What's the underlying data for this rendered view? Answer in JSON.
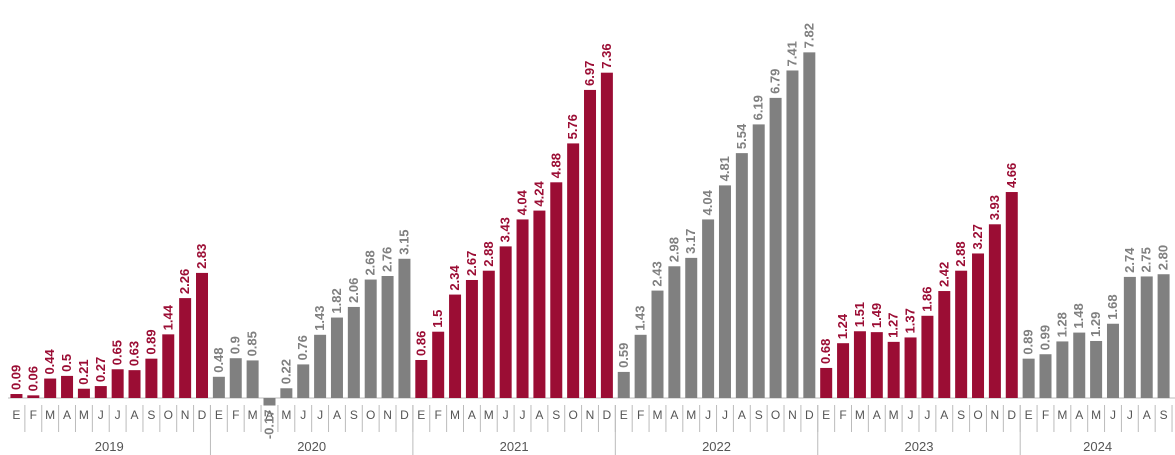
{
  "colors": {
    "highlight": "#9b0d34",
    "neutral": "#808080",
    "axis": "#bbbbbb",
    "text": "#555555"
  },
  "chart_data": {
    "type": "bar",
    "title": "",
    "xlabel": "",
    "ylabel": "",
    "ylim": [
      -0.5,
      8.0
    ],
    "grid": false,
    "legend": "none",
    "months": [
      "E",
      "F",
      "M",
      "A",
      "M",
      "J",
      "J",
      "A",
      "S",
      "O",
      "N",
      "D"
    ],
    "years": [
      {
        "label": "2019",
        "color": "highlight",
        "values": [
          0.09,
          0.06,
          0.44,
          0.5,
          0.21,
          0.27,
          0.65,
          0.63,
          0.89,
          1.44,
          2.26,
          2.83
        ]
      },
      {
        "label": "2020",
        "color": "neutral",
        "values": [
          0.48,
          0.9,
          0.85,
          -0.17,
          0.22,
          0.76,
          1.43,
          1.82,
          2.06,
          2.68,
          2.76,
          3.15
        ]
      },
      {
        "label": "2021",
        "color": "highlight",
        "values": [
          0.86,
          1.5,
          2.34,
          2.67,
          2.88,
          3.43,
          4.04,
          4.24,
          4.88,
          5.76,
          6.97,
          7.36
        ]
      },
      {
        "label": "2022",
        "color": "neutral",
        "values": [
          0.59,
          1.43,
          2.43,
          2.98,
          3.17,
          4.04,
          4.81,
          5.54,
          6.19,
          6.79,
          7.41,
          7.82
        ]
      },
      {
        "label": "2023",
        "color": "highlight",
        "values": [
          0.68,
          1.24,
          1.51,
          1.49,
          1.27,
          1.37,
          1.86,
          2.42,
          2.88,
          3.27,
          3.93,
          4.66
        ]
      },
      {
        "label": "2024",
        "color": "neutral",
        "values": [
          0.89,
          0.99,
          1.28,
          1.48,
          1.29,
          1.68,
          2.74,
          2.75,
          2.8
        ]
      }
    ],
    "value_labels": {
      "2019": [
        "0.09",
        "0.06",
        "0.44",
        "0.5",
        "0.21",
        "0.27",
        "0.65",
        "0.63",
        "0.89",
        "1.44",
        "2.26",
        "2.83"
      ],
      "2020": [
        "0.48",
        "0.9",
        "0.85",
        "-0.17",
        "0.22",
        "0.76",
        "1.43",
        "1.82",
        "2.06",
        "2.68",
        "2.76",
        "3.15"
      ],
      "2021": [
        "0.86",
        "1.5",
        "2.34",
        "2.67",
        "2.88",
        "3.43",
        "4.04",
        "4.24",
        "4.88",
        "5.76",
        "6.97",
        "7.36"
      ],
      "2022": [
        "0.59",
        "1.43",
        "2.43",
        "2.98",
        "3.17",
        "4.04",
        "4.81",
        "5.54",
        "6.19",
        "6.79",
        "7.41",
        "7.82"
      ],
      "2023": [
        "0.68",
        "1.24",
        "1.51",
        "1.49",
        "1.27",
        "1.37",
        "1.86",
        "2.42",
        "2.88",
        "3.27",
        "3.93",
        "4.66"
      ],
      "2024": [
        "0.89",
        "0.99",
        "1.28",
        "1.48",
        "1.29",
        "1.68",
        "2.74",
        "2.75",
        "2.80"
      ]
    }
  }
}
